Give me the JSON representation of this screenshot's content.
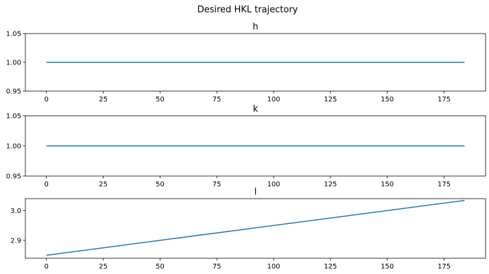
{
  "figure_title": "Desired HKL trajectory",
  "chart_data": [
    {
      "type": "line",
      "title": "h",
      "xlabel": "",
      "ylabel": "",
      "xlim": [
        -9.25,
        193.25
      ],
      "ylim": [
        0.95,
        1.05
      ],
      "xticks": [
        0,
        25,
        50,
        75,
        100,
        125,
        150,
        175
      ],
      "yticks": [
        0.95,
        1.0,
        1.05
      ],
      "ytick_labels": [
        "0.95",
        "1.00",
        "1.05"
      ],
      "grid": false,
      "color": "#1f77b4",
      "series": [
        {
          "x": [
            0,
            184
          ],
          "y": [
            1.0,
            1.0
          ]
        }
      ]
    },
    {
      "type": "line",
      "title": "k",
      "xlabel": "",
      "ylabel": "",
      "xlim": [
        -9.25,
        193.25
      ],
      "ylim": [
        0.95,
        1.05
      ],
      "xticks": [
        0,
        25,
        50,
        75,
        100,
        125,
        150,
        175
      ],
      "yticks": [
        0.95,
        1.0,
        1.05
      ],
      "ytick_labels": [
        "0.95",
        "1.00",
        "1.05"
      ],
      "grid": false,
      "color": "#1f77b4",
      "series": [
        {
          "x": [
            0,
            184
          ],
          "y": [
            1.0,
            1.0
          ]
        }
      ]
    },
    {
      "type": "line",
      "title": "l",
      "xlabel": "",
      "ylabel": "",
      "xlim": [
        -9.25,
        193.25
      ],
      "ylim": [
        2.84,
        3.04
      ],
      "xticks": [
        0,
        25,
        50,
        75,
        100,
        125,
        150,
        175
      ],
      "yticks": [
        2.9,
        3.0
      ],
      "ytick_labels": [
        "2.9",
        "3.0"
      ],
      "grid": false,
      "color": "#1f77b4",
      "series": [
        {
          "x": [
            0,
            184
          ],
          "y": [
            2.85,
            3.034
          ]
        }
      ]
    }
  ]
}
